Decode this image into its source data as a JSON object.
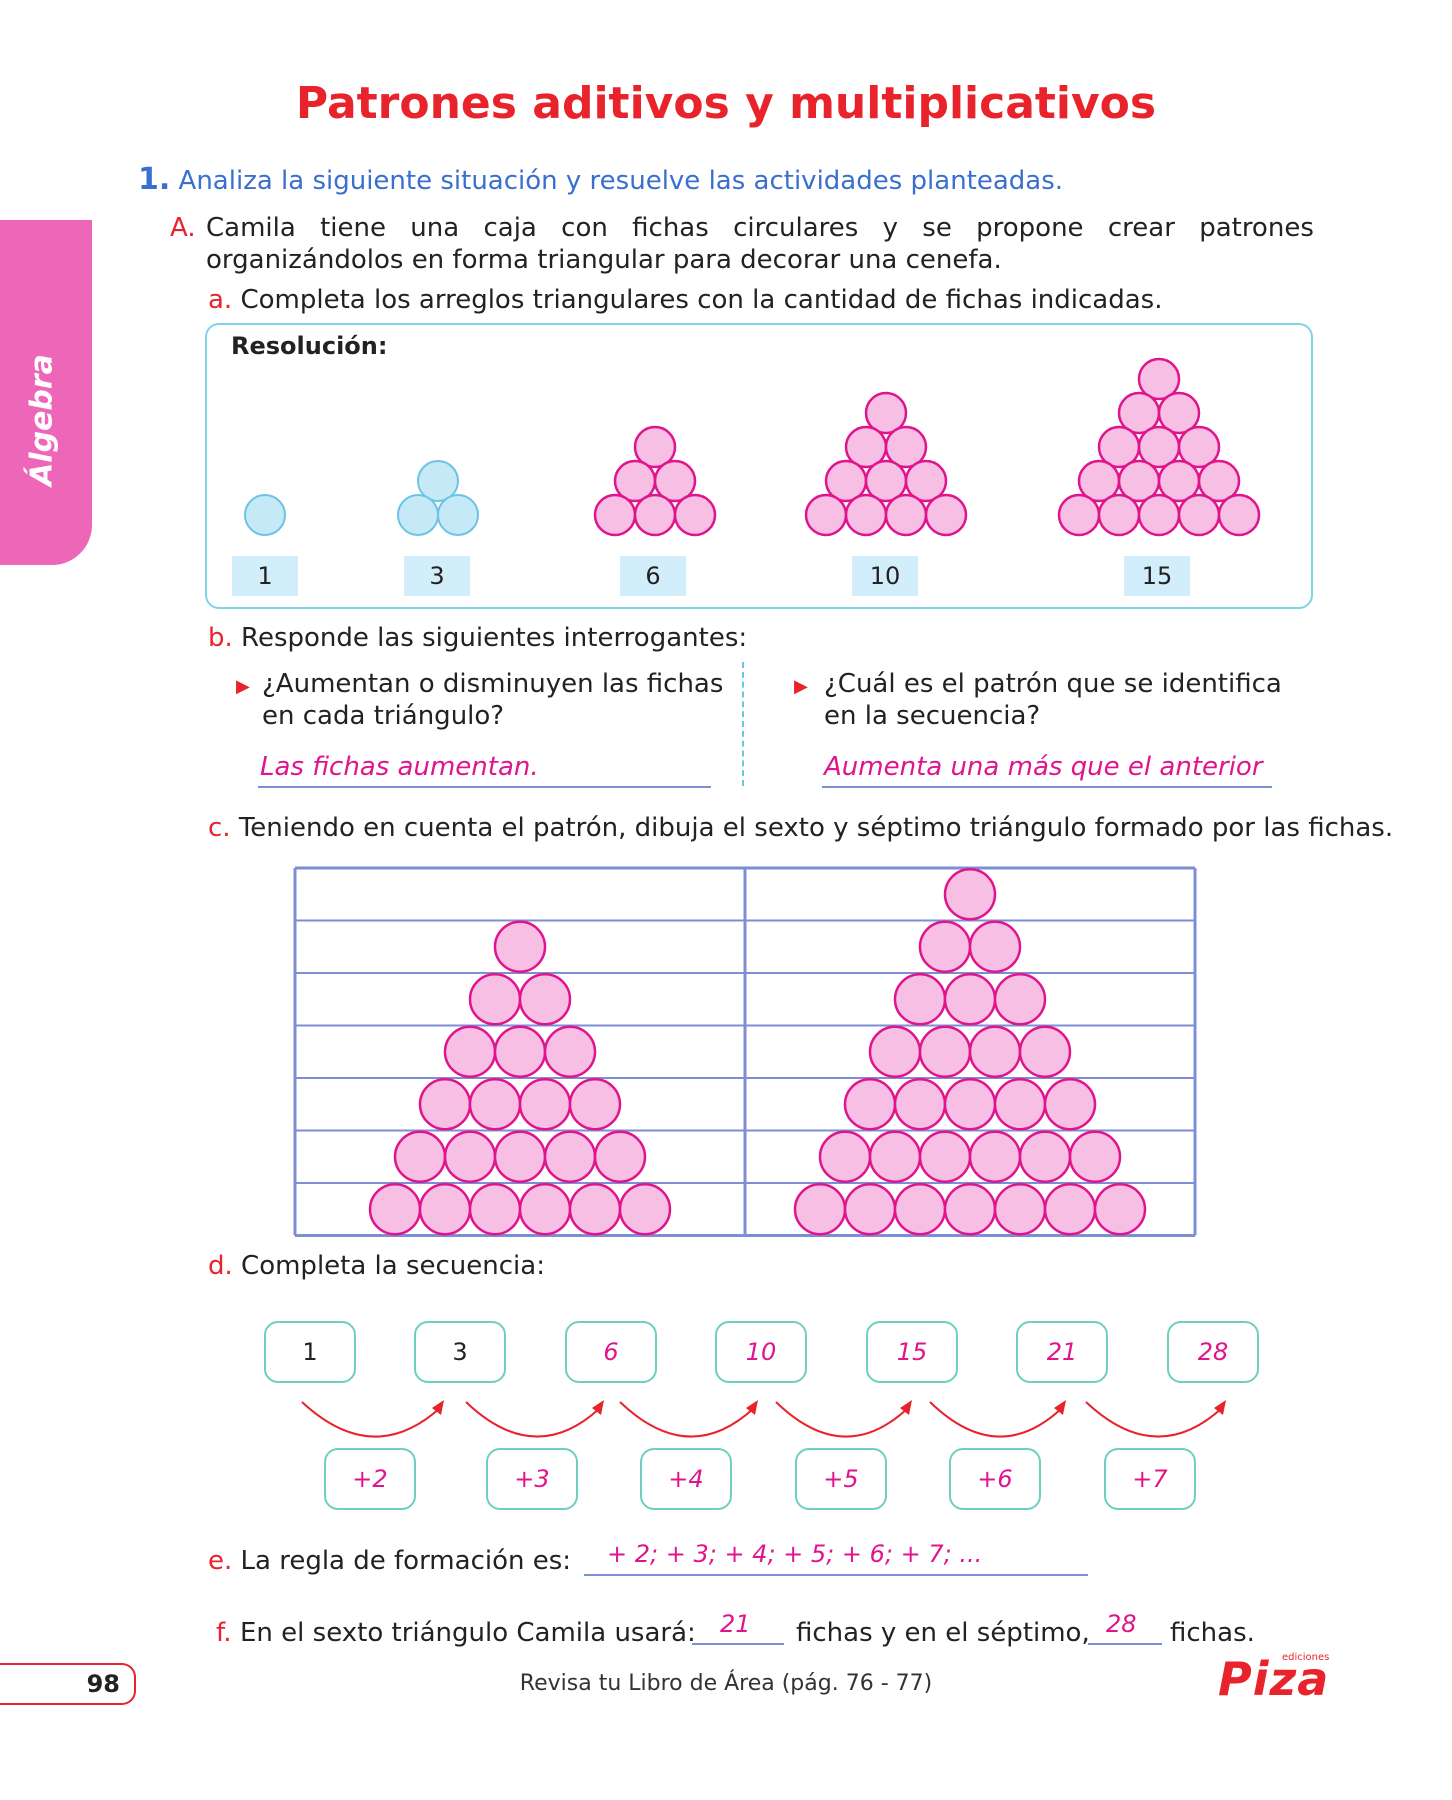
{
  "title": "Patrones aditivos y multiplicativos",
  "side_tab": "Álgebra",
  "q1": {
    "number": "1.",
    "text": "Analiza la siguiente situación y resuelve las actividades planteadas."
  },
  "partA": {
    "letter": "A.",
    "line1_words": [
      "Camila",
      "tiene",
      "una",
      "caja",
      "con",
      "fichas",
      "circulares",
      "y",
      "se",
      "propone",
      "crear",
      "patrones"
    ],
    "line2": "organizándolos en forma triangular para decorar una cenefa."
  },
  "a": {
    "letter": "a.",
    "text": "Completa los arreglos triangulares con la cantidad de fichas indicadas.",
    "resolution": "Resolución:",
    "labels": [
      "1",
      "3",
      "6",
      "10",
      "15"
    ]
  },
  "b": {
    "letter": "b.",
    "text": "Responde las siguientes interrogantes:",
    "q_left_1": "¿Aumentan o disminuyen las fichas",
    "q_left_2": "en cada triángulo?",
    "ans_left": "Las fichas aumentan.",
    "q_right_1": "¿Cuál es el patrón que se identifica",
    "q_right_2": "en la secuencia?",
    "ans_right": "Aumenta una más que el anterior"
  },
  "c": {
    "letter": "c.",
    "text": "Teniendo en cuenta el patrón, dibuja el sexto y séptimo triángulo formado por las fichas."
  },
  "d": {
    "letter": "d.",
    "text": "Completa la secuencia:",
    "sequence": [
      "1",
      "3",
      "6",
      "10",
      "15",
      "21",
      "28"
    ],
    "increments": [
      "+2",
      "+3",
      "+4",
      "+5",
      "+6",
      "+7"
    ]
  },
  "e": {
    "letter": "e.",
    "text": "La regla de formación es:",
    "answer": "+ 2; + 3; + 4; + 5; + 6; + 7; ..."
  },
  "f": {
    "letter": "f.",
    "text1": "En el sexto triángulo Camila usará:",
    "ans1": "21",
    "text2": "fichas y en el séptimo,",
    "ans2": "28",
    "text3": "fichas."
  },
  "footer": {
    "page": "98",
    "text": "Revisa tu Libro de Área (pág. 76 - 77)",
    "logo": "Piza",
    "logo_small": "ediciones"
  },
  "colors": {
    "title_red": "#e8232b",
    "pink_fill": "#f7bfe4",
    "pink_stroke": "#e0148c",
    "blue_fill": "#c6e9f8",
    "blue_stroke": "#6cc4e4",
    "grid_blue": "#7c8fd6",
    "teal_box": "#6fcfbe"
  }
}
